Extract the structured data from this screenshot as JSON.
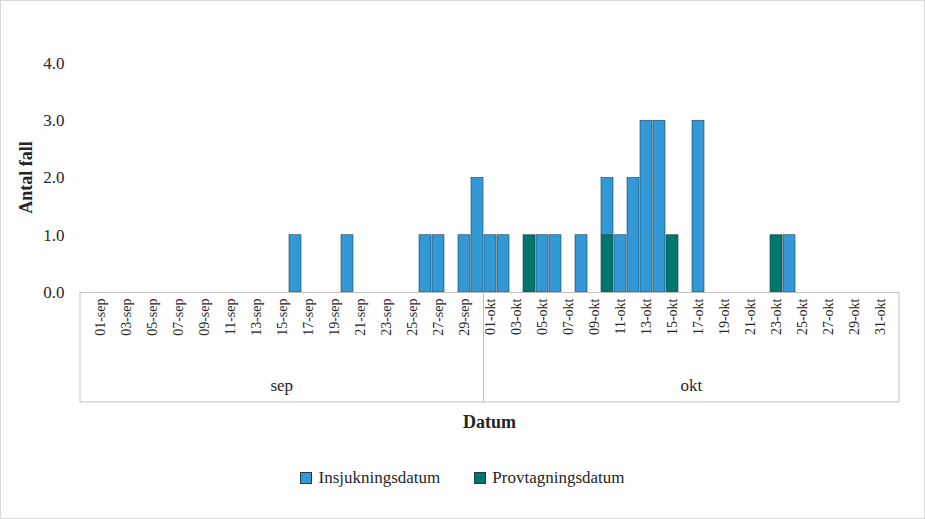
{
  "chart_data": {
    "type": "bar",
    "stacked": true,
    "x_label": "Datum",
    "y_label": "Antal fall",
    "categories": [
      "01-sep",
      null,
      "03-sep",
      null,
      "05-sep",
      null,
      "07-sep",
      null,
      "09-sep",
      null,
      "11-sep",
      null,
      "13-sep",
      null,
      "15-sep",
      null,
      "17-sep",
      null,
      "19-sep",
      null,
      "21-sep",
      null,
      "23-sep",
      null,
      "25-sep",
      null,
      "27-sep",
      null,
      "29-sep",
      null,
      "01-okt",
      null,
      "03-okt",
      null,
      "05-okt",
      null,
      "07-okt",
      null,
      "09-okt",
      null,
      "11-okt",
      null,
      "13-okt",
      null,
      "15-okt",
      null,
      "17-okt",
      null,
      "19-okt",
      null,
      "21-okt",
      null,
      "23-okt",
      null,
      "25-okt",
      null,
      "27-okt",
      null,
      "29-okt",
      null,
      "31-okt"
    ],
    "category_groups": [
      {
        "label": "sep",
        "count": 30
      },
      {
        "label": "okt",
        "count": 31
      }
    ],
    "series": [
      {
        "name": "Insjukningsdatum",
        "color": "#3399D6",
        "values": [
          0,
          0,
          0,
          0,
          0,
          0,
          0,
          0,
          0,
          0,
          0,
          0,
          0,
          0,
          0,
          1,
          0,
          0,
          0,
          1,
          0,
          0,
          0,
          0,
          0,
          1,
          1,
          0,
          1,
          2,
          1,
          1,
          0,
          0,
          1,
          1,
          0,
          1,
          0,
          1,
          1,
          2,
          3,
          3,
          0,
          0,
          3,
          0,
          0,
          0,
          0,
          0,
          0,
          1,
          0,
          0,
          0,
          0,
          0,
          0,
          0
        ]
      },
      {
        "name": "Provtagningsdatum",
        "color": "#00776B",
        "values": [
          0,
          0,
          0,
          0,
          0,
          0,
          0,
          0,
          0,
          0,
          0,
          0,
          0,
          0,
          0,
          0,
          0,
          0,
          0,
          0,
          0,
          0,
          0,
          0,
          0,
          0,
          0,
          0,
          0,
          0,
          0,
          0,
          0,
          1,
          0,
          0,
          0,
          0,
          0,
          1,
          0,
          0,
          0,
          0,
          1,
          0,
          0,
          0,
          0,
          0,
          0,
          0,
          1,
          0,
          0,
          0,
          0,
          0,
          0,
          0,
          0
        ]
      }
    ],
    "ylim": [
      0,
      4
    ],
    "yticks": [
      0,
      1,
      2,
      3,
      4
    ],
    "grid": false,
    "legend": "bottom"
  }
}
